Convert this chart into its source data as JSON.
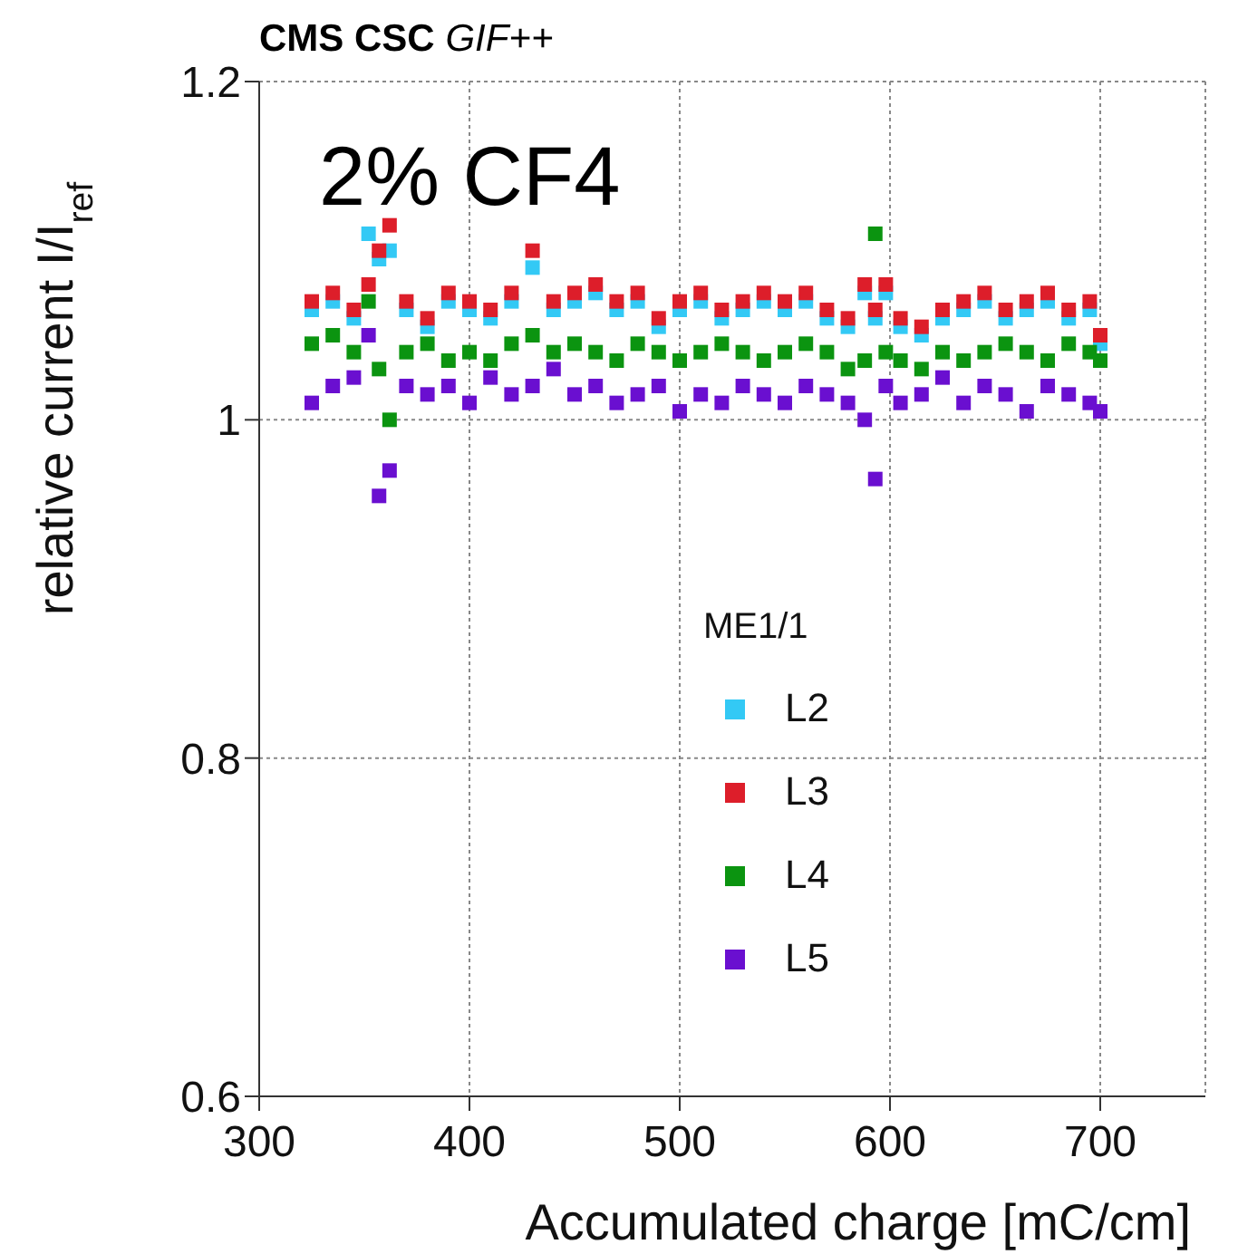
{
  "chart_data": {
    "type": "scatter",
    "title": "CMS CSC",
    "subtitle": "GIF++",
    "annotations": [
      "2% CF4"
    ],
    "xlabel": "Accumulated charge [mC/cm]",
    "ylabel": "relative current I/I$_{ref}$",
    "legend_title": "ME1/1",
    "legend": "bottom",
    "grid": true,
    "marker": "square",
    "xlim": [
      300,
      750
    ],
    "xticks": [
      300,
      400,
      500,
      600,
      700
    ],
    "ylim": [
      0.6,
      1.2
    ],
    "yticks": [
      0.6,
      0.8,
      1,
      1.2
    ],
    "x": [
      325,
      335,
      345,
      352,
      357,
      362,
      370,
      380,
      390,
      400,
      410,
      420,
      430,
      440,
      450,
      460,
      470,
      480,
      490,
      500,
      510,
      520,
      530,
      540,
      550,
      560,
      570,
      580,
      588,
      593,
      598,
      605,
      615,
      625,
      635,
      645,
      655,
      665,
      675,
      685,
      695,
      700
    ],
    "series": [
      {
        "name": "L2",
        "color": "#33c9f5",
        "values": [
          1.065,
          1.07,
          1.06,
          1.11,
          1.095,
          1.1,
          1.065,
          1.055,
          1.07,
          1.065,
          1.06,
          1.07,
          1.09,
          1.065,
          1.07,
          1.075,
          1.065,
          1.07,
          1.055,
          1.065,
          1.07,
          1.06,
          1.065,
          1.07,
          1.065,
          1.07,
          1.06,
          1.055,
          1.075,
          1.06,
          1.075,
          1.055,
          1.05,
          1.06,
          1.065,
          1.07,
          1.06,
          1.065,
          1.07,
          1.06,
          1.065,
          1.045
        ]
      },
      {
        "name": "L3",
        "color": "#dd1e2a",
        "values": [
          1.07,
          1.075,
          1.065,
          1.08,
          1.1,
          1.115,
          1.07,
          1.06,
          1.075,
          1.07,
          1.065,
          1.075,
          1.1,
          1.07,
          1.075,
          1.08,
          1.07,
          1.075,
          1.06,
          1.07,
          1.075,
          1.065,
          1.07,
          1.075,
          1.07,
          1.075,
          1.065,
          1.06,
          1.08,
          1.065,
          1.08,
          1.06,
          1.055,
          1.065,
          1.07,
          1.075,
          1.065,
          1.07,
          1.075,
          1.065,
          1.07,
          1.05
        ]
      },
      {
        "name": "L4",
        "color": "#0b9410",
        "values": [
          1.045,
          1.05,
          1.04,
          1.07,
          1.03,
          1,
          1.04,
          1.045,
          1.035,
          1.04,
          1.035,
          1.045,
          1.05,
          1.04,
          1.045,
          1.04,
          1.035,
          1.045,
          1.04,
          1.035,
          1.04,
          1.045,
          1.04,
          1.035,
          1.04,
          1.045,
          1.04,
          1.03,
          1.035,
          1.11,
          1.04,
          1.035,
          1.03,
          1.04,
          1.035,
          1.04,
          1.045,
          1.04,
          1.035,
          1.045,
          1.04,
          1.035
        ]
      },
      {
        "name": "L5",
        "color": "#6a0fd0",
        "values": [
          1.01,
          1.02,
          1.025,
          1.05,
          0.955,
          0.97,
          1.02,
          1.015,
          1.02,
          1.01,
          1.025,
          1.015,
          1.02,
          1.03,
          1.015,
          1.02,
          1.01,
          1.015,
          1.02,
          1.005,
          1.015,
          1.01,
          1.02,
          1.015,
          1.01,
          1.02,
          1.015,
          1.01,
          1,
          0.965,
          1.02,
          1.01,
          1.015,
          1.025,
          1.01,
          1.02,
          1.015,
          1.005,
          1.02,
          1.015,
          1.01,
          1.005
        ]
      }
    ]
  }
}
